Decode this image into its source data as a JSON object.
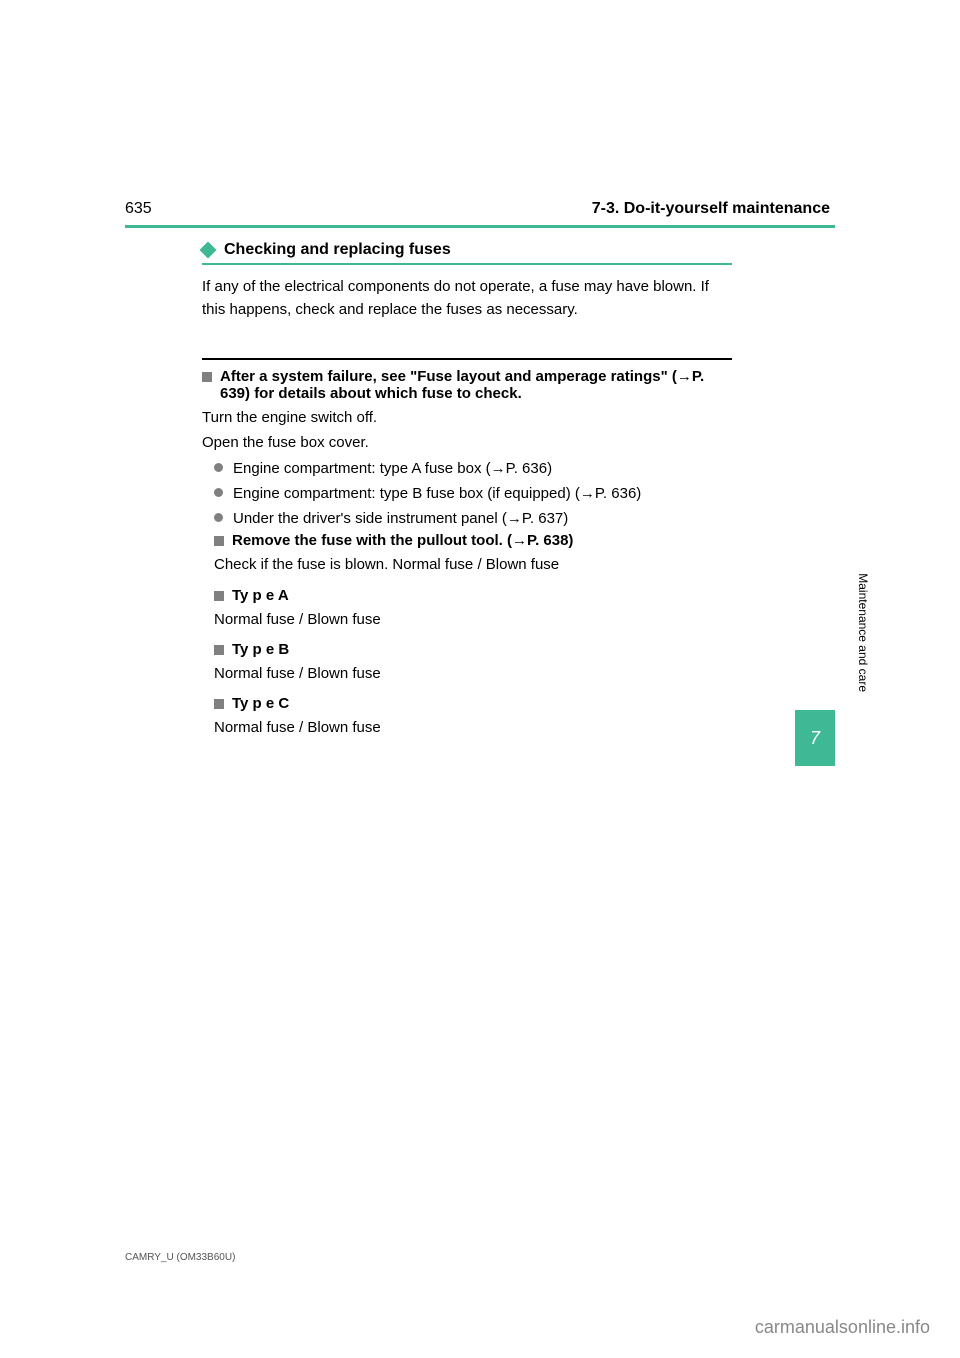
{
  "accent_color": "#3fb896",
  "bullet_color": "#808080",
  "page_num_top": "635",
  "header_section": "7-3. Do-it-yourself maintenance",
  "section_title": "Checking and replacing fuses",
  "intro": "If any of the electrical components do not operate, a fuse may have blown. If this happens, check and replace the fuses as necessary.",
  "heading_1": "After a system failure, see \"Fuse layout and amperage ratings\" (→P. 639) for details about which fuse to check.",
  "body_1": "Turn the engine switch off.",
  "body_2": "Open the fuse box cover.",
  "bullets": [
    {
      "text": "Engine compartment: type A fuse box (→P. 636)"
    },
    {
      "text": "Engine compartment: type B fuse box (if equipped) (→P. 636)"
    },
    {
      "text": "Under the driver's side instrument panel (→P. 637)"
    }
  ],
  "blocks": [
    {
      "heading": "Remove the fuse with the pullout tool. (→P. 638)",
      "body": "Check if the fuse is blown.\nNormal fuse / Blown fuse"
    },
    {
      "heading": "Ty p e  A",
      "body": "Normal fuse / Blown fuse"
    },
    {
      "heading": "Ty p e  B",
      "body": "Normal fuse / Blown fuse"
    },
    {
      "heading": "Ty p e  C",
      "body": "Normal fuse / Blown fuse"
    }
  ],
  "side_tab_number": "7",
  "side_label": "Maintenance and care",
  "footer_left": "CAMRY_U (OM33B60U)",
  "footer": "carmanualsonline.info"
}
